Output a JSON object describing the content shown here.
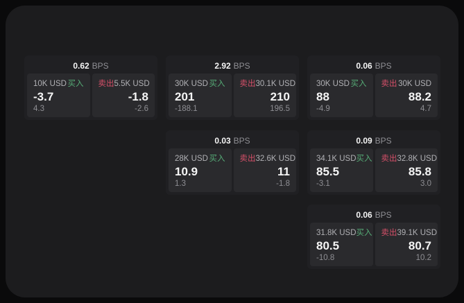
{
  "colors": {
    "page_bg": "#0a0a0b",
    "surface_bg": "#1c1c1e",
    "card_bg": "#202023",
    "panel_bg": "#2a2a2d",
    "buy_green": "#56ab76",
    "sell_red": "#d65069",
    "text_primary": "#f5f5f5",
    "text_secondary": "#b1b1b5",
    "text_muted": "#8f8f94"
  },
  "labels": {
    "bps_unit": "BPS",
    "buy_action": "买入",
    "sell_action": "卖出"
  },
  "cards": [
    {
      "col": 1,
      "row": 1,
      "bps": "0.62",
      "buy": {
        "amount": "10K USD",
        "value": "-3.7",
        "sub": "4.3"
      },
      "sell": {
        "amount": "5.5K USD",
        "value": "-1.8",
        "sub": "-2.6"
      }
    },
    {
      "col": 2,
      "row": 1,
      "bps": "2.92",
      "buy": {
        "amount": "30K USD",
        "value": "201",
        "sub": "-188.1"
      },
      "sell": {
        "amount": "30.1K USD",
        "value": "210",
        "sub": "196.5"
      }
    },
    {
      "col": 3,
      "row": 1,
      "bps": "0.06",
      "buy": {
        "amount": "30K USD",
        "value": "88",
        "sub": "-4.9"
      },
      "sell": {
        "amount": "30K USD",
        "value": "88.2",
        "sub": "4.7"
      }
    },
    {
      "col": 2,
      "row": 2,
      "bps": "0.03",
      "buy": {
        "amount": "28K USD",
        "value": "10.9",
        "sub": "1.3"
      },
      "sell": {
        "amount": "32.6K USD",
        "value": "11",
        "sub": "-1.8"
      }
    },
    {
      "col": 3,
      "row": 2,
      "bps": "0.09",
      "buy": {
        "amount": "34.1K USD",
        "value": "85.5",
        "sub": "-3.1"
      },
      "sell": {
        "amount": "32.8K USD",
        "value": "85.8",
        "sub": "3.0"
      }
    },
    {
      "col": 3,
      "row": 3,
      "bps": "0.06",
      "buy": {
        "amount": "31.8K USD",
        "value": "80.5",
        "sub": "-10.8"
      },
      "sell": {
        "amount": "39.1K USD",
        "value": "80.7",
        "sub": "10.2"
      }
    }
  ]
}
